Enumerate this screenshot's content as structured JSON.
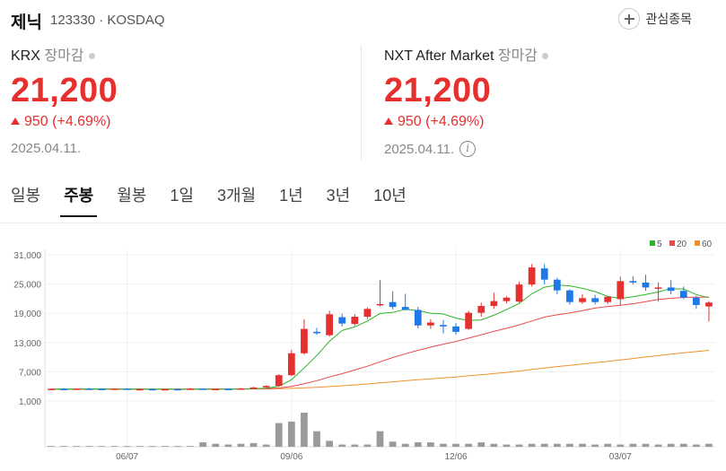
{
  "header": {
    "name": "제닉",
    "code": "123330 · KOSDAQ",
    "watch_label": "관심종목"
  },
  "krx": {
    "market": "KRX",
    "status": "장마감",
    "price": "21,200",
    "change": "950 (+4.69%)",
    "date": "2025.04.11."
  },
  "nxt": {
    "market": "NXT After Market",
    "status": "장마감",
    "price": "21,200",
    "change": "950 (+4.69%)",
    "date": "2025.04.11."
  },
  "tabs": [
    "일봉",
    "주봉",
    "월봉",
    "1일",
    "3개월",
    "1년",
    "3년",
    "10년"
  ],
  "active_tab": "주봉",
  "colors": {
    "up": "#e6302e",
    "down": "#1e78e6",
    "ma5": "#2ab52a",
    "ma20": "#e84a4a",
    "ma60": "#f0902a",
    "volume": "#9a9a9a"
  },
  "chart_data": {
    "type": "candlestick",
    "legend": [
      {
        "name": "5",
        "color": "#2ab52a"
      },
      {
        "name": "20",
        "color": "#e84a4a"
      },
      {
        "name": "60",
        "color": "#f0902a"
      }
    ],
    "y_ticks": [
      "31,000",
      "25,000",
      "19,000",
      "13,000",
      "7,000",
      "1,000"
    ],
    "y_tick_values": [
      31000,
      25000,
      19000,
      13000,
      7000,
      1000
    ],
    "ylim": [
      1000,
      31000
    ],
    "x_ticks": [
      {
        "label": "06/07",
        "index": 6
      },
      {
        "label": "09/06",
        "index": 19
      },
      {
        "label": "12/06",
        "index": 32
      },
      {
        "label": "03/07",
        "index": 45
      }
    ],
    "candles": [
      [
        3400,
        3600,
        3300,
        3500
      ],
      [
        3500,
        3650,
        3400,
        3450
      ],
      [
        3450,
        3600,
        3350,
        3550
      ],
      [
        3550,
        3700,
        3450,
        3500
      ],
      [
        3500,
        3650,
        3400,
        3450
      ],
      [
        3450,
        3600,
        3350,
        3550
      ],
      [
        3550,
        3650,
        3400,
        3400
      ],
      [
        3400,
        3550,
        3300,
        3450
      ],
      [
        3450,
        3550,
        3350,
        3350
      ],
      [
        3350,
        3500,
        3250,
        3450
      ],
      [
        3450,
        3550,
        3350,
        3400
      ],
      [
        3400,
        3700,
        3300,
        3550
      ],
      [
        3550,
        3650,
        3300,
        3300
      ],
      [
        3300,
        3550,
        3200,
        3500
      ],
      [
        3500,
        3650,
        3400,
        3450
      ],
      [
        3450,
        3700,
        3350,
        3600
      ],
      [
        3600,
        3900,
        3500,
        3800
      ],
      [
        3800,
        4200,
        3700,
        4100
      ],
      [
        4100,
        6500,
        4000,
        6300
      ],
      [
        6300,
        11500,
        6100,
        10800
      ],
      [
        10800,
        17800,
        10500,
        15800
      ],
      [
        15200,
        16000,
        14600,
        14900
      ],
      [
        14500,
        19500,
        14200,
        18800
      ],
      [
        18200,
        18900,
        16300,
        16900
      ],
      [
        16800,
        18800,
        16400,
        18300
      ],
      [
        18300,
        20200,
        17800,
        19900
      ],
      [
        20800,
        25800,
        20400,
        20900
      ],
      [
        21300,
        23500,
        19800,
        20300
      ],
      [
        20300,
        23000,
        19600,
        19700
      ],
      [
        19700,
        20300,
        15900,
        16500
      ],
      [
        16500,
        17800,
        15800,
        17100
      ],
      [
        16600,
        17600,
        14900,
        16300
      ],
      [
        16300,
        17000,
        14600,
        15200
      ],
      [
        15800,
        19500,
        15600,
        19100
      ],
      [
        19100,
        21200,
        18300,
        20500
      ],
      [
        20500,
        23200,
        19900,
        21500
      ],
      [
        21500,
        22500,
        21000,
        22200
      ],
      [
        21400,
        25500,
        21200,
        24900
      ],
      [
        24900,
        29100,
        24500,
        28400
      ],
      [
        28200,
        29100,
        24900,
        25900
      ],
      [
        25900,
        26300,
        22900,
        23700
      ],
      [
        23700,
        23900,
        20800,
        21300
      ],
      [
        21300,
        22900,
        20900,
        22100
      ],
      [
        22100,
        22800,
        20800,
        21300
      ],
      [
        21300,
        22400,
        20900,
        22400
      ],
      [
        21900,
        26500,
        20600,
        25600
      ],
      [
        25600,
        26600,
        24900,
        25300
      ],
      [
        25300,
        26900,
        23600,
        24300
      ],
      [
        24300,
        25300,
        21400,
        24300
      ],
      [
        24300,
        25800,
        22900,
        23600
      ],
      [
        23600,
        24500,
        21900,
        22200
      ],
      [
        22200,
        22600,
        19900,
        20700
      ],
      [
        20400,
        21500,
        17300,
        21200
      ]
    ],
    "ma5": [
      3450,
      3460,
      3470,
      3480,
      3490,
      3470,
      3460,
      3450,
      3440,
      3430,
      3420,
      3430,
      3440,
      3440,
      3450,
      3470,
      3530,
      3620,
      4040,
      5370,
      7770,
      10340,
      13260,
      15470,
      16200,
      17420,
      18960,
      19160,
      19820,
      19530,
      19010,
      18850,
      18010,
      17500,
      17640,
      18600,
      19760,
      21000,
      23000,
      24360,
      24800,
      24640,
      24120,
      23460,
      22460,
      22060,
      22380,
      22850,
      23380,
      24060,
      23990,
      22850,
      22200
    ],
    "ma20": [
      3440,
      3440,
      3450,
      3450,
      3450,
      3450,
      3450,
      3450,
      3450,
      3450,
      3450,
      3460,
      3460,
      3460,
      3460,
      3470,
      3490,
      3520,
      3670,
      3980,
      4560,
      5180,
      5930,
      6620,
      7370,
      8150,
      9040,
      9930,
      10700,
      11400,
      12060,
      12660,
      13210,
      13900,
      14580,
      15280,
      15920,
      16630,
      17420,
      18220,
      18680,
      19060,
      19540,
      20070,
      20400,
      20640,
      20960,
      21400,
      21840,
      22080,
      22260,
      22320,
      22320
    ],
    "ma60": [
      3400,
      3410,
      3410,
      3420,
      3420,
      3420,
      3420,
      3430,
      3430,
      3430,
      3430,
      3440,
      3440,
      3440,
      3440,
      3450,
      3460,
      3480,
      3530,
      3600,
      3700,
      3810,
      3960,
      4120,
      4300,
      4490,
      4710,
      4940,
      5160,
      5360,
      5560,
      5750,
      5940,
      6170,
      6400,
      6640,
      6880,
      7150,
      7470,
      7770,
      8060,
      8330,
      8590,
      8850,
      9110,
      9430,
      9730,
      10030,
      10320,
      10610,
      10880,
      11140,
      11400
    ],
    "volume": [
      2,
      2,
      2,
      2,
      2,
      2,
      2,
      2,
      2,
      2,
      2,
      2,
      12,
      8,
      6,
      8,
      10,
      6,
      64,
      68,
      92,
      42,
      16,
      6,
      6,
      6,
      42,
      14,
      8,
      12,
      12,
      8,
      8,
      8,
      12,
      8,
      6,
      6,
      8,
      8,
      8,
      8,
      8,
      6,
      8,
      6,
      8,
      8,
      6,
      8,
      8,
      6,
      8
    ]
  }
}
